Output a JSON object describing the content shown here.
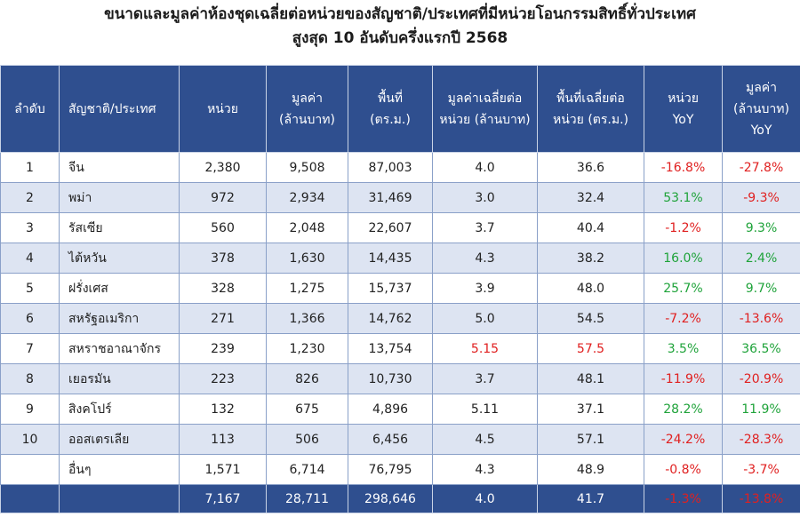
{
  "title": {
    "line1": "ขนาดและมูลค่าห้องชุดเฉลี่ยต่อหน่วยของสัญชาติ/ประเทศที่มีหน่วยโอนกรรมสิทธิ์ทั่วประเทศ",
    "line2": "สูงสุด 10 อันดับครึ่งแรกปี 2568"
  },
  "header": {
    "rank": "ลำดับ",
    "country": "สัญชาติ/ประเทศ",
    "units": "หน่วย",
    "value_l1": "มูลค่า",
    "value_l2": "(ล้านบาท)",
    "area_l1": "พื้นที่",
    "area_l2": "(ตร.ม.)",
    "avg_value_l1": "มูลค่าเฉลี่ยต่อ",
    "avg_value_l2": "หน่วย (ล้านบาท)",
    "avg_area_l1": "พื้นที่เฉลี่ยต่อ",
    "avg_area_l2": "หน่วย (ตร.ม.)",
    "units_yoy_l1": "หน่วย",
    "units_yoy_l2": "YoY",
    "value_yoy_l1": "มูลค่า",
    "value_yoy_l2": "(ล้านบาท)",
    "value_yoy_l3": "YoY"
  },
  "rows": [
    {
      "rank": "1",
      "country": "จีน",
      "units": "2,380",
      "value": "9,508",
      "area": "87,003",
      "avg_value": "4.0",
      "avg_area": "36.6",
      "units_yoy": "-16.8%",
      "value_yoy": "-27.8%"
    },
    {
      "rank": "2",
      "country": "พม่า",
      "units": "972",
      "value": "2,934",
      "area": "31,469",
      "avg_value": "3.0",
      "avg_area": "32.4",
      "units_yoy": "53.1%",
      "value_yoy": "-9.3%"
    },
    {
      "rank": "3",
      "country": "รัสเซีย",
      "units": "560",
      "value": "2,048",
      "area": "22,607",
      "avg_value": "3.7",
      "avg_area": "40.4",
      "units_yoy": "-1.2%",
      "value_yoy": "9.3%"
    },
    {
      "rank": "4",
      "country": "ไต้หวัน",
      "units": "378",
      "value": "1,630",
      "area": "14,435",
      "avg_value": "4.3",
      "avg_area": "38.2",
      "units_yoy": "16.0%",
      "value_yoy": "2.4%"
    },
    {
      "rank": "5",
      "country": "ฝรั่งเศส",
      "units": "328",
      "value": "1,275",
      "area": "15,737",
      "avg_value": "3.9",
      "avg_area": "48.0",
      "units_yoy": "25.7%",
      "value_yoy": "9.7%"
    },
    {
      "rank": "6",
      "country": "สหรัฐอเมริกา",
      "units": "271",
      "value": "1,366",
      "area": "14,762",
      "avg_value": "5.0",
      "avg_area": "54.5",
      "units_yoy": "-7.2%",
      "value_yoy": "-13.6%"
    },
    {
      "rank": "7",
      "country": "สหราชอาณาจักร",
      "units": "239",
      "value": "1,230",
      "area": "13,754",
      "avg_value": "5.15",
      "avg_area": "57.5",
      "units_yoy": "3.5%",
      "value_yoy": "36.5%"
    },
    {
      "rank": "8",
      "country": "เยอรมัน",
      "units": "223",
      "value": "826",
      "area": "10,730",
      "avg_value": "3.7",
      "avg_area": "48.1",
      "units_yoy": "-11.9%",
      "value_yoy": "-20.9%"
    },
    {
      "rank": "9",
      "country": "สิงคโปร์",
      "units": "132",
      "value": "675",
      "area": "4,896",
      "avg_value": "5.11",
      "avg_area": "37.1",
      "units_yoy": "28.2%",
      "value_yoy": "11.9%"
    },
    {
      "rank": "10",
      "country": "ออสเตรเลีย",
      "units": "113",
      "value": "506",
      "area": "6,456",
      "avg_value": "4.5",
      "avg_area": "57.1",
      "units_yoy": "-24.2%",
      "value_yoy": "-28.3%"
    },
    {
      "rank": "",
      "country": "อื่นๆ",
      "units": "1,571",
      "value": "6,714",
      "area": "76,795",
      "avg_value": "4.3",
      "avg_area": "48.9",
      "units_yoy": "-0.8%",
      "value_yoy": "-3.7%"
    }
  ],
  "total": {
    "units": "7,167",
    "value": "28,711",
    "area": "298,646",
    "avg_value": "4.0",
    "avg_area": "41.7",
    "units_yoy": "-1.3%",
    "value_yoy": "-13.8%"
  },
  "colors": {
    "header_bg": "#2f4f8f",
    "band": "#dde4f2",
    "negative": "#e02020",
    "positive": "#1fa33a",
    "highlight": "#e02020"
  }
}
